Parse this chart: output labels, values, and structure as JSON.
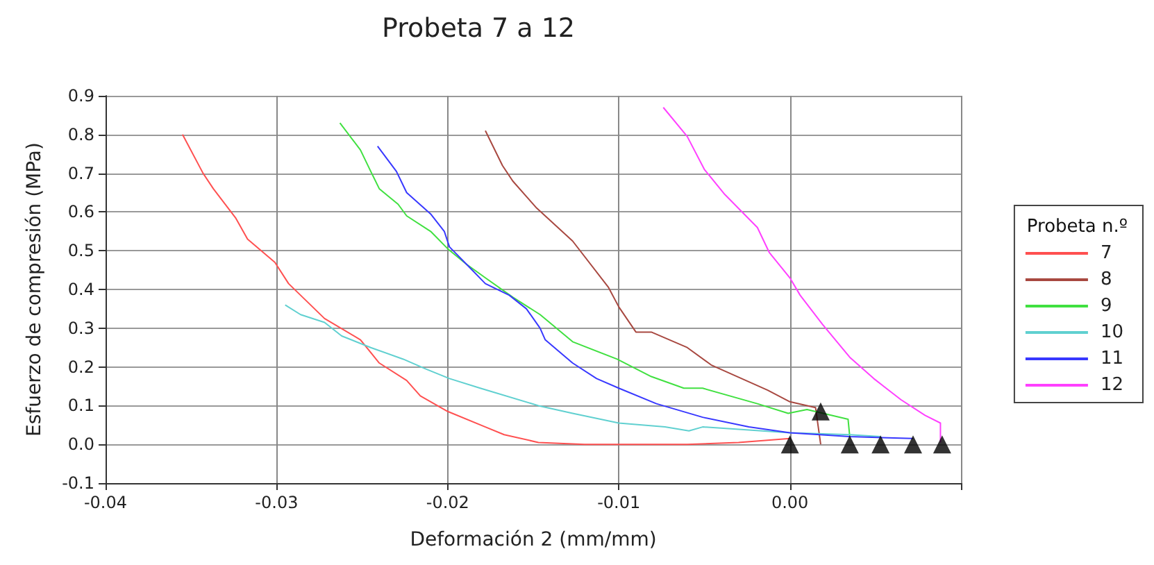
{
  "chart_data": {
    "type": "line",
    "title": "Probeta 7 a 12",
    "xlabel": "Deformación 2 (mm/mm)",
    "ylabel": "Esfuerzo de compresión (MPa)",
    "legend_title": "Probeta n.º",
    "legend": "right",
    "grid": true,
    "marker": "none",
    "line_style": "solid",
    "xlim": [
      -0.04,
      0.01
    ],
    "xticks": [
      -0.04,
      -0.03,
      -0.02,
      -0.01,
      {
        "value": 0,
        "label": "0.00"
      },
      {
        "value": 0.01,
        "label": null
      }
    ],
    "ylim": [
      -0.1,
      0.9
    ],
    "yticks": [
      -0.1,
      {
        "value": 0,
        "label": "0.0"
      },
      0.1,
      0.2,
      0.3,
      0.4,
      0.5,
      0.6,
      0.7,
      0.8,
      0.9
    ],
    "series": [
      {
        "name": "7",
        "color": "#ff5050",
        "x": [
          -0.0355,
          -0.0343,
          -0.0337,
          -0.0324,
          -0.0317,
          -0.0301,
          -0.0293,
          -0.0272,
          -0.0251,
          -0.024,
          -0.0224,
          -0.0216,
          -0.02,
          -0.0178,
          -0.0167,
          -0.0147,
          -0.012,
          -0.006,
          -0.003,
          0.0
        ],
        "values": [
          0.8,
          0.7,
          0.66,
          0.585,
          0.53,
          0.47,
          0.415,
          0.325,
          0.27,
          0.21,
          0.165,
          0.125,
          0.085,
          0.045,
          0.025,
          0.005,
          0.0,
          0.0,
          0.005,
          0.015
        ]
      },
      {
        "name": "8",
        "color": "#a84840",
        "x": [
          -0.0178,
          -0.0168,
          -0.0162,
          -0.0154,
          -0.0148,
          -0.0127,
          -0.0106,
          -0.01,
          -0.009,
          -0.0081,
          -0.006,
          -0.0046,
          -0.0013,
          0.0,
          0.0015,
          0.0018
        ],
        "values": [
          0.81,
          0.72,
          0.68,
          0.64,
          0.61,
          0.525,
          0.405,
          0.355,
          0.29,
          0.29,
          0.25,
          0.205,
          0.14,
          0.11,
          0.095,
          0.0
        ]
      },
      {
        "name": "9",
        "color": "#40e040",
        "x": [
          -0.0263,
          -0.0251,
          -0.0245,
          -0.024,
          -0.0229,
          -0.0224,
          -0.021,
          -0.02,
          -0.0189,
          -0.0178,
          -0.0162,
          -0.0146,
          -0.0127,
          -0.0101,
          -0.0081,
          -0.0062,
          -0.0051,
          -0.0019,
          -0.0001,
          0.001,
          0.0034,
          0.0035
        ],
        "values": [
          0.83,
          0.76,
          0.705,
          0.66,
          0.62,
          0.59,
          0.55,
          0.505,
          0.465,
          0.43,
          0.38,
          0.335,
          0.265,
          0.22,
          0.175,
          0.145,
          0.145,
          0.105,
          0.08,
          0.09,
          0.065,
          0.02
        ]
      },
      {
        "name": "10",
        "color": "#60d0d0",
        "x": [
          -0.0295,
          -0.0286,
          -0.0272,
          -0.0262,
          -0.0245,
          -0.0226,
          -0.0213,
          -0.0199,
          -0.0181,
          -0.0147,
          -0.0127,
          -0.01,
          -0.0073,
          -0.0059,
          -0.0051,
          0.0,
          0.0035,
          0.0053
        ],
        "values": [
          0.36,
          0.335,
          0.315,
          0.28,
          0.25,
          0.22,
          0.195,
          0.17,
          0.145,
          0.1,
          0.08,
          0.055,
          0.045,
          0.035,
          0.045,
          0.03,
          0.025,
          0.02
        ]
      },
      {
        "name": "11",
        "color": "#3838ff",
        "x": [
          -0.0241,
          -0.023,
          -0.0224,
          -0.021,
          -0.0202,
          -0.0199,
          -0.0189,
          -0.0178,
          -0.0164,
          -0.0154,
          -0.0146,
          -0.0143,
          -0.0127,
          -0.0113,
          -0.01,
          -0.0078,
          -0.0051,
          -0.0024,
          0.0,
          0.0035,
          0.0072
        ],
        "values": [
          0.77,
          0.705,
          0.65,
          0.595,
          0.55,
          0.51,
          0.465,
          0.415,
          0.385,
          0.35,
          0.3,
          0.27,
          0.21,
          0.17,
          0.145,
          0.105,
          0.07,
          0.045,
          0.03,
          0.02,
          0.015
        ]
      },
      {
        "name": "12",
        "color": "#ff40ff",
        "x": [
          -0.0074,
          -0.006,
          -0.005,
          -0.0038,
          -0.0019,
          -0.0012,
          0.0,
          0.0006,
          0.0019,
          0.0035,
          0.0049,
          0.0065,
          0.0079,
          0.0088,
          0.0088
        ],
        "values": [
          0.87,
          0.795,
          0.71,
          0.645,
          0.56,
          0.495,
          0.43,
          0.385,
          0.31,
          0.225,
          0.17,
          0.115,
          0.075,
          0.055,
          0.005
        ]
      },
      {
        "type": "scatter",
        "marker": "triangle",
        "color": "#000000",
        "x": [
          0.0,
          0.0018,
          0.0035,
          0.0053,
          0.0072,
          0.0089
        ],
        "values": [
          0.0,
          0.085,
          0.0,
          0.0,
          0.0,
          0.0
        ]
      }
    ]
  }
}
